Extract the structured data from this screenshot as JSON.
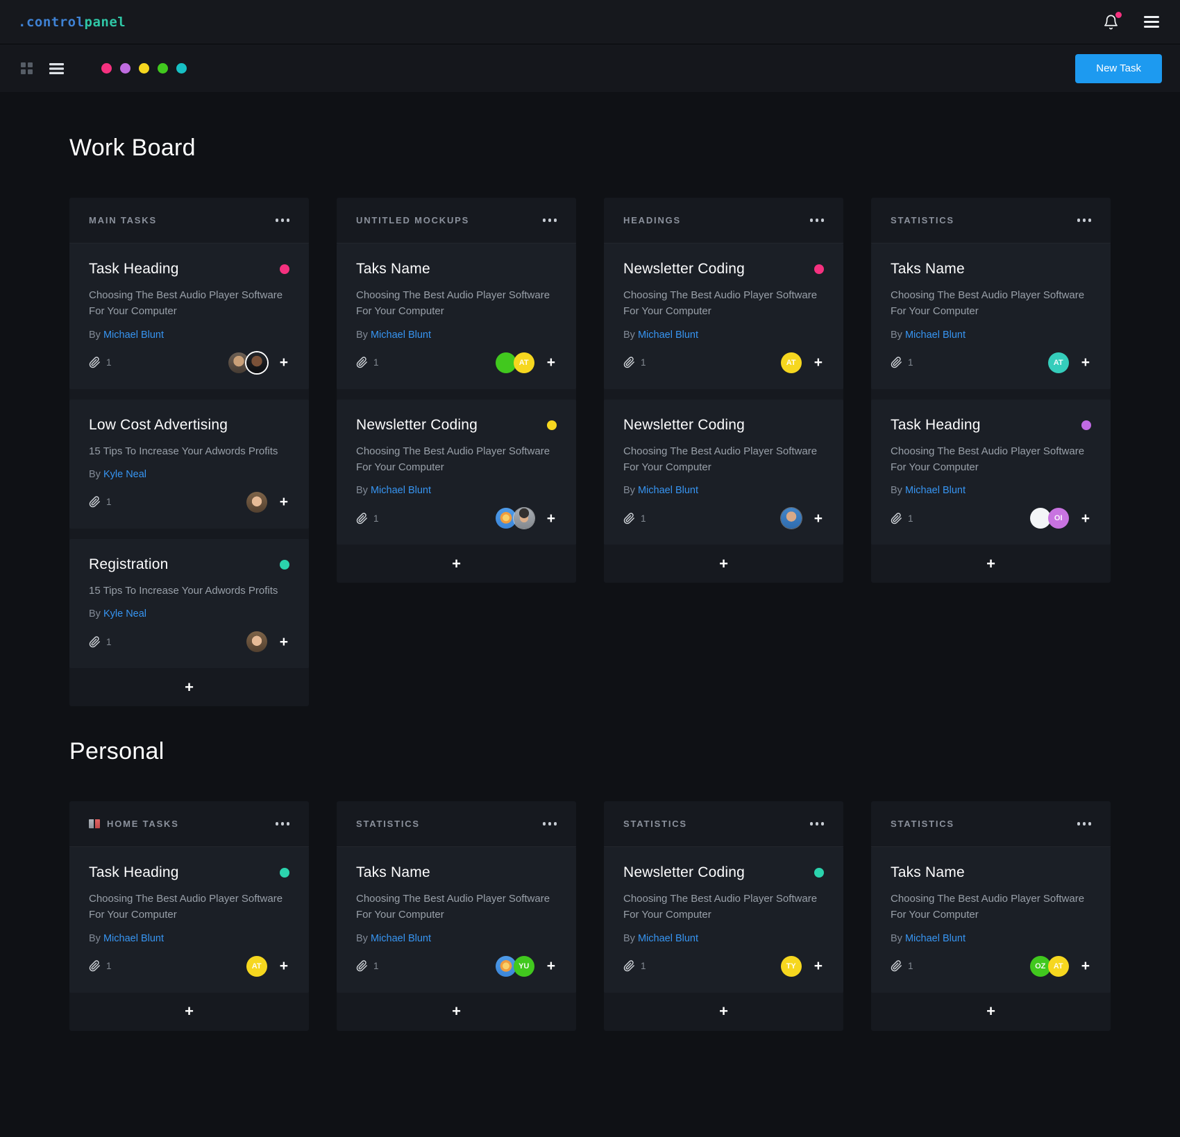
{
  "navbar": {
    "logo": {
      "prefix": ".control",
      "suffix": "panel",
      "prefix_color": "#3f82d4",
      "suffix_color": "#2fc7a6"
    },
    "notification_badge_color": "#f5317f"
  },
  "toolbar": {
    "swatches": [
      "#f5317f",
      "#bf6ce0",
      "#f6d71f",
      "#41c81e",
      "#17c0c4"
    ],
    "new_task_label": "New Task",
    "new_task_color": "#1d9af0"
  },
  "labels": {
    "by": "By",
    "add": "+"
  },
  "theme": {
    "page_bg": "#0f1115",
    "column_bg": "#16191f",
    "card_bg": "#1b1f26",
    "link_color": "#3795f2"
  },
  "sections": [
    {
      "title": "Work Board",
      "columns": [
        {
          "title": "MAIN TASKS",
          "icon": null,
          "cards": [
            {
              "title": "Task Heading",
              "dot": "#f5317f",
              "description": "Choosing The Best Audio Player Software For Your Computer",
              "author": "Michael Blunt",
              "attachments": "1",
              "avatars": [
                {
                  "kind": "photo",
                  "variant": "man-glasses"
                },
                {
                  "kind": "photo",
                  "variant": "man-dark"
                }
              ]
            },
            {
              "title": "Low Cost Advertising",
              "dot": null,
              "description": "15 Tips To Increase Your Adwords Profits",
              "author": "Kyle Neal",
              "attachments": "1",
              "avatars": [
                {
                  "kind": "photo",
                  "variant": "woman"
                }
              ]
            },
            {
              "title": "Registration",
              "dot": "#2bd3ad",
              "description": "15 Tips To Increase Your Adwords Profits",
              "author": "Kyle Neal",
              "attachments": "1",
              "avatars": [
                {
                  "kind": "photo",
                  "variant": "woman"
                }
              ]
            }
          ]
        },
        {
          "title": "UNTITLED MOCKUPS",
          "icon": null,
          "cards": [
            {
              "title": "Taks Name",
              "dot": null,
              "description": "Choosing The Best Audio Player Software For Your Computer",
              "author": "Michael Blunt",
              "attachments": "1",
              "avatars": [
                {
                  "kind": "plain",
                  "bg": "#41c81e"
                },
                {
                  "kind": "initials",
                  "bg": "#f6d71f",
                  "text": "AT"
                }
              ]
            },
            {
              "title": "Newsletter Coding",
              "dot": "#f6d71f",
              "description": "Choosing The Best Audio Player Software For Your Computer",
              "author": "Michael Blunt",
              "attachments": "1",
              "avatars": [
                {
                  "kind": "emoji",
                  "variant": "lion"
                },
                {
                  "kind": "photo",
                  "variant": "man-dark-hair"
                }
              ]
            }
          ]
        },
        {
          "title": "HEADINGS",
          "icon": null,
          "cards": [
            {
              "title": "Newsletter Coding",
              "dot": "#f5317f",
              "description": "Choosing The Best Audio Player Software For Your Computer",
              "author": "Michael Blunt",
              "attachments": "1",
              "avatars": [
                {
                  "kind": "initials",
                  "bg": "#f6d71f",
                  "text": "AT"
                }
              ]
            },
            {
              "title": "Newsletter Coding",
              "dot": null,
              "description": "Choosing The Best Audio Player Software For Your Computer",
              "author": "Michael Blunt",
              "attachments": "1",
              "avatars": [
                {
                  "kind": "photo",
                  "variant": "man-blue-shirt"
                }
              ]
            }
          ]
        },
        {
          "title": "STATISTICS",
          "icon": null,
          "cards": [
            {
              "title": "Taks Name",
              "dot": null,
              "description": "Choosing The Best Audio Player Software For Your Computer",
              "author": "Michael Blunt",
              "attachments": "1",
              "avatars": [
                {
                  "kind": "initials",
                  "bg": "#35cdbb",
                  "text": "AT"
                }
              ]
            },
            {
              "title": "Task Heading",
              "dot": "#c06ae3",
              "description": "Choosing The Best Audio Player Software For Your Computer",
              "author": "Michael Blunt",
              "attachments": "1",
              "avatars": [
                {
                  "kind": "plain",
                  "bg": "#f3f5f7"
                },
                {
                  "kind": "initials",
                  "bg": "#c873e0",
                  "text": "OI"
                }
              ]
            }
          ]
        }
      ]
    },
    {
      "title": "Personal",
      "columns": [
        {
          "title": "HOME TASKS",
          "icon": "books",
          "cards": [
            {
              "title": "Task Heading",
              "dot": "#2bd3ad",
              "description": "Choosing The Best Audio Player Software For Your Computer",
              "author": "Michael Blunt",
              "attachments": "1",
              "avatars": [
                {
                  "kind": "initials",
                  "bg": "#f6d71f",
                  "text": "AT"
                }
              ]
            }
          ]
        },
        {
          "title": "STATISTICS",
          "icon": null,
          "cards": [
            {
              "title": "Taks Name",
              "dot": null,
              "description": "Choosing The Best Audio Player Software For Your Computer",
              "author": "Michael Blunt",
              "attachments": "1",
              "avatars": [
                {
                  "kind": "emoji",
                  "variant": "lion"
                },
                {
                  "kind": "initials",
                  "bg": "#41c81e",
                  "text": "YU"
                }
              ]
            }
          ]
        },
        {
          "title": "STATISTICS",
          "icon": null,
          "cards": [
            {
              "title": "Newsletter Coding",
              "dot": "#2bd3ad",
              "description": "Choosing The Best Audio Player Software For Your Computer",
              "author": "Michael Blunt",
              "attachments": "1",
              "avatars": [
                {
                  "kind": "initials",
                  "bg": "#f6d71f",
                  "text": "TY"
                }
              ]
            }
          ]
        },
        {
          "title": "STATISTICS",
          "icon": null,
          "cards": [
            {
              "title": "Taks Name",
              "dot": null,
              "description": "Choosing The Best Audio Player Software For Your Computer",
              "author": "Michael Blunt",
              "attachments": "1",
              "avatars": [
                {
                  "kind": "initials",
                  "bg": "#41c81e",
                  "text": "OZ"
                },
                {
                  "kind": "initials",
                  "bg": "#f6d71f",
                  "text": "AT"
                }
              ]
            }
          ]
        }
      ]
    }
  ]
}
